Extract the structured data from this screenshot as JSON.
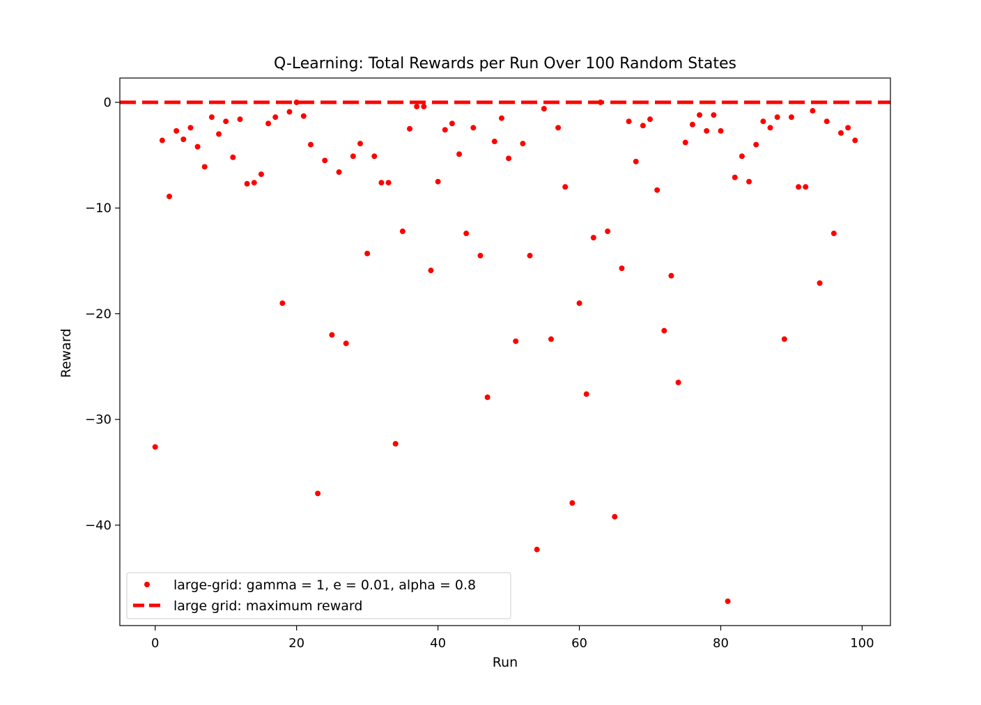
{
  "chart_data": {
    "type": "scatter",
    "title": "Q-Learning: Total Rewards per Run Over 100 Random States",
    "xlabel": "Run",
    "ylabel": "Reward",
    "xlim": [
      -5,
      104
    ],
    "ylim": [
      -49.5,
      2.3
    ],
    "xticks": [
      0,
      20,
      40,
      60,
      80,
      100
    ],
    "yticks": [
      0,
      -10,
      -20,
      -30,
      -40
    ],
    "ytick_labels": [
      "0",
      "−10",
      "−20",
      "−30",
      "−40"
    ],
    "grid": false,
    "legend_position": "lower-left",
    "series": [
      {
        "name": "large-grid: gamma = 1, e = 0.01, alpha = 0.8",
        "style": "points",
        "color": "#ff0000",
        "x": [
          0,
          1,
          2,
          3,
          4,
          5,
          6,
          7,
          8,
          9,
          10,
          11,
          12,
          13,
          14,
          15,
          16,
          17,
          18,
          19,
          20,
          21,
          22,
          23,
          24,
          25,
          26,
          27,
          28,
          29,
          30,
          31,
          32,
          33,
          34,
          35,
          36,
          37,
          38,
          39,
          40,
          41,
          42,
          43,
          44,
          45,
          46,
          47,
          48,
          49,
          50,
          51,
          52,
          53,
          54,
          55,
          56,
          57,
          58,
          59,
          60,
          61,
          62,
          63,
          64,
          65,
          66,
          67,
          68,
          69,
          70,
          71,
          72,
          73,
          74,
          75,
          76,
          77,
          78,
          79,
          80,
          81,
          82,
          83,
          84,
          85,
          86,
          87,
          88,
          89,
          90,
          91,
          92,
          93,
          94,
          95,
          96,
          97,
          98,
          99
        ],
        "y": [
          -32.6,
          -3.6,
          -8.9,
          -2.7,
          -3.5,
          -2.4,
          -4.2,
          -6.1,
          -1.4,
          -3.0,
          -1.8,
          -5.2,
          -1.6,
          -7.7,
          -7.6,
          -6.8,
          -2.0,
          -1.4,
          -19.0,
          -0.9,
          0.0,
          -1.3,
          -4.0,
          -37.0,
          -5.5,
          -22.0,
          -6.6,
          -22.8,
          -5.1,
          -3.9,
          -14.3,
          -5.1,
          -7.6,
          -7.6,
          -32.3,
          -12.2,
          -2.5,
          -0.4,
          -0.4,
          -15.9,
          -7.5,
          -2.6,
          -2.0,
          -4.9,
          -12.4,
          -2.4,
          -14.5,
          -27.9,
          -3.7,
          -1.5,
          -5.3,
          -22.6,
          -3.9,
          -14.5,
          -42.3,
          -0.6,
          -22.4,
          -2.4,
          -8.0,
          -37.9,
          -19.0,
          -27.6,
          -12.8,
          0.0,
          -12.2,
          -39.2,
          -15.7,
          -1.8,
          -5.6,
          -2.2,
          -1.6,
          -8.3,
          -21.6,
          -16.4,
          -26.5,
          -3.8,
          -2.1,
          -1.2,
          -2.7,
          -1.2,
          -2.7,
          -47.2,
          -7.1,
          -5.1,
          -7.5,
          -4.0,
          -1.8,
          -2.4,
          -1.4,
          -22.4,
          -1.4,
          -8.0,
          -8.0,
          -0.8,
          -17.1,
          -1.8,
          -12.4,
          -2.9,
          -2.4,
          -3.6
        ]
      },
      {
        "name": "large grid: maximum reward",
        "style": "dashed-line",
        "color": "#ff0000",
        "y": 0
      }
    ]
  }
}
